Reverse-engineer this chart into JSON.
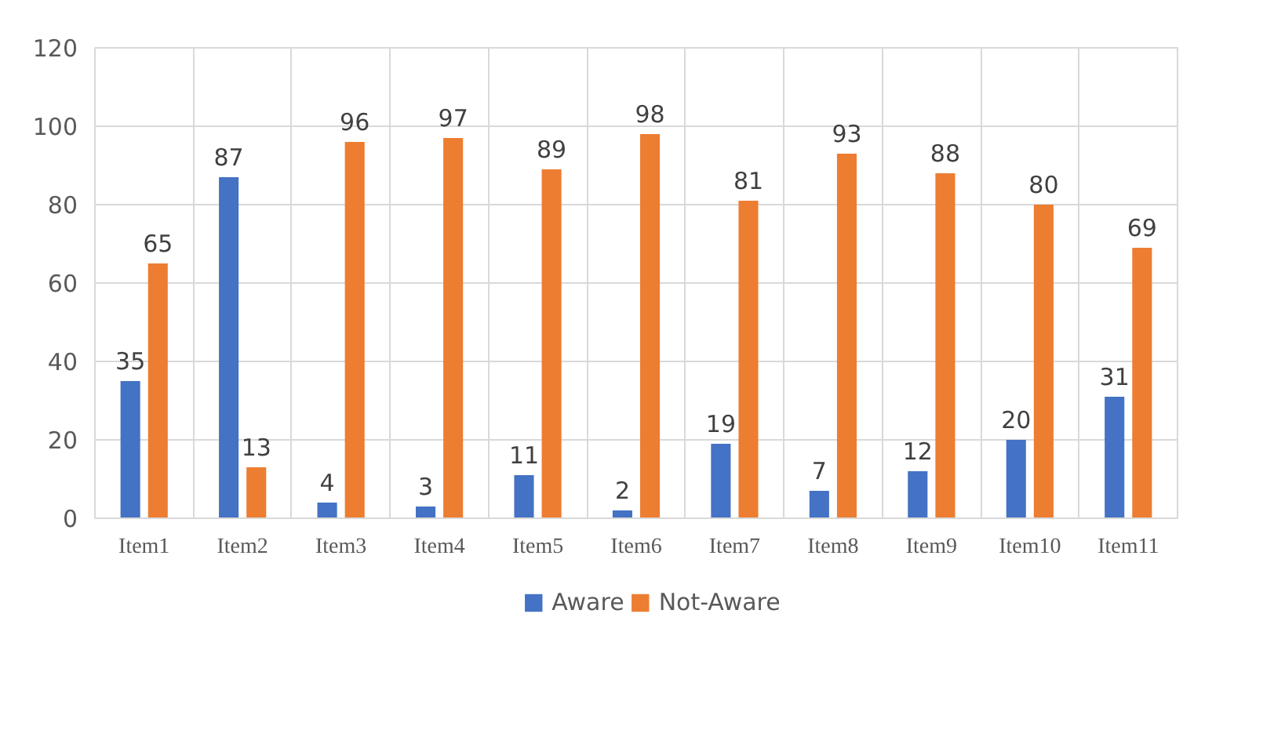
{
  "chart_data": {
    "type": "bar",
    "categories": [
      "Item1",
      "Item2",
      "Item3",
      "Item4",
      "Item5",
      "Item6",
      "Item7",
      "Item8",
      "Item9",
      "Item10",
      "Item11"
    ],
    "series": [
      {
        "name": "Aware",
        "color": "#4472c4",
        "values": [
          35,
          87,
          4,
          3,
          11,
          2,
          19,
          7,
          12,
          20,
          31
        ]
      },
      {
        "name": "Not-Aware",
        "color": "#ed7d31",
        "values": [
          65,
          13,
          96,
          97,
          89,
          98,
          81,
          93,
          88,
          80,
          69
        ]
      }
    ],
    "ylim": [
      0,
      120
    ],
    "yticks": [
      0,
      20,
      40,
      60,
      80,
      100,
      120
    ],
    "grid": true,
    "legend": "bottom",
    "data_labels": true
  }
}
